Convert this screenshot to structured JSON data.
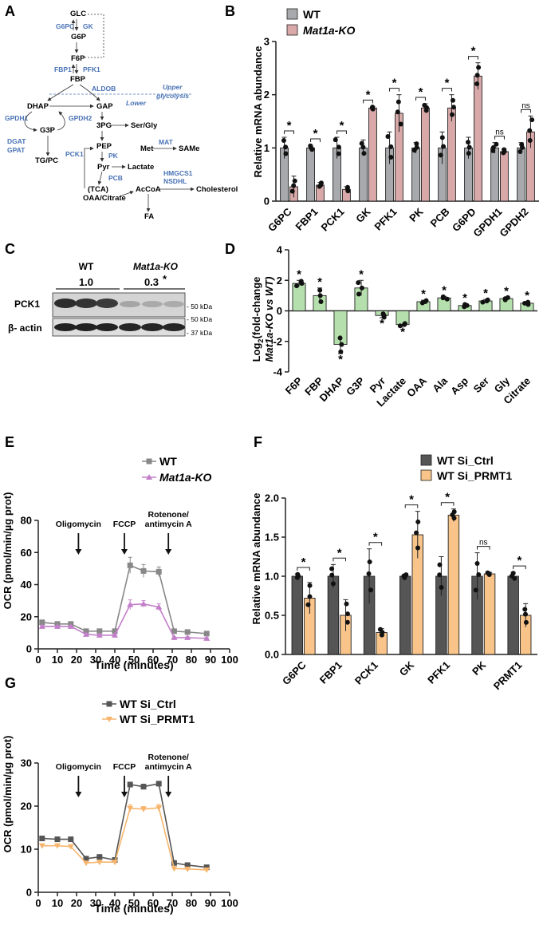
{
  "panels": {
    "A": "A",
    "B": "B",
    "C": "C",
    "D": "D",
    "E": "E",
    "F": "F",
    "G": "G"
  },
  "colors": {
    "wt": "#a7a9ac",
    "ko": "#d9a9a9",
    "green": "#b5e0ad",
    "ko_line": "#c27ec9",
    "si_ctrl": "#555555",
    "si_prmt1": "#f8c48a",
    "si_prmt1_line": "#f7b56d",
    "pathway_blue": "#4a73b5"
  },
  "pathway": {
    "metabolites": [
      "GLC",
      "G6P",
      "F6P",
      "FBP",
      "DHAP",
      "GAP",
      "3PG",
      "Ser/Gly",
      "G3P",
      "PEP",
      "Met",
      "SAMe",
      "TG/PC",
      "Pyr",
      "Lactate",
      "(TCA)",
      "OAA/Citrate",
      "AcCoA",
      "Cholesterol",
      "FA"
    ],
    "enzymes": [
      "G6PC",
      "GK",
      "FBP1",
      "PFK1",
      "ALDOB",
      "GPDH1",
      "GPDH2",
      "DGAT",
      "GPAT",
      "PCK1",
      "PK",
      "MAT",
      "PCB",
      "HMGCS1",
      "NSDHL"
    ],
    "upper_label": "Upper",
    "glycolysis_label": "glycolysis",
    "lower_label": "Lower"
  },
  "blot": {
    "groups": [
      "WT",
      "Mat1a-KO"
    ],
    "quant": [
      "1.0",
      "0.3"
    ],
    "quant_star": "*",
    "rows": [
      "PCK1",
      "β- actin"
    ],
    "markers": [
      "- 50 kDa",
      "- 50 kDa",
      "- 37 kDa"
    ]
  },
  "chart_data": [
    {
      "panel": "B",
      "type": "bar",
      "ylabel": "Relative mRNA abundance",
      "ylim": [
        0,
        3
      ],
      "yticks": [
        0,
        1,
        2,
        3
      ],
      "categories": [
        "G6PC",
        "FBP1",
        "PCK1",
        "GK",
        "PFK1",
        "PK",
        "PCB",
        "G6PD",
        "GPDH1",
        "GPDH2"
      ],
      "series": [
        {
          "name": "WT",
          "values": [
            1.0,
            1.0,
            1.0,
            1.0,
            1.0,
            1.0,
            1.0,
            1.0,
            1.0,
            1.0
          ],
          "errors": [
            0.2,
            0.05,
            0.2,
            0.15,
            0.3,
            0.1,
            0.3,
            0.2,
            0.1,
            0.1
          ]
        },
        {
          "name": "Mat1a-KO",
          "values": [
            0.27,
            0.3,
            0.22,
            1.75,
            1.65,
            1.75,
            1.75,
            2.35,
            0.93,
            1.3
          ],
          "errors": [
            0.2,
            0.05,
            0.05,
            0.03,
            0.35,
            0.08,
            0.25,
            0.25,
            0.05,
            0.3
          ]
        }
      ],
      "significance": [
        "*",
        "*",
        "*",
        "*",
        "*",
        "*",
        "*",
        "*",
        "ns",
        "ns"
      ]
    },
    {
      "panel": "D",
      "type": "bar",
      "ylabel_line1": "Log",
      "ylabel_sub": "2",
      "ylabel_line1_rest": "(fold-change",
      "ylabel_line2": "Mat1a-KO vs WT)",
      "ylim": [
        -4,
        4
      ],
      "yticks": [
        -4,
        -2,
        0,
        2,
        4
      ],
      "categories": [
        "F6P",
        "FBP",
        "DHAP",
        "G3P",
        "Pyr",
        "Lactate",
        "OAA",
        "Ala",
        "Asp",
        "Ser",
        "Gly",
        "Citrate"
      ],
      "values": [
        1.8,
        1.0,
        -2.2,
        1.5,
        -0.3,
        -0.9,
        0.6,
        0.85,
        0.35,
        0.65,
        0.8,
        0.5
      ],
      "errors": [
        0.2,
        0.5,
        0.6,
        0.5,
        0.15,
        0.1,
        0.1,
        0.1,
        0.1,
        0.1,
        0.1,
        0.1
      ],
      "significance": [
        "*",
        "*",
        "*",
        "*",
        "*",
        "*",
        "*",
        "*",
        "*",
        "*",
        "*",
        "*"
      ]
    },
    {
      "panel": "E",
      "type": "line",
      "xlabel": "Time (minutes)",
      "ylabel": "OCR (pmol/min/µg prot)",
      "xlim": [
        0,
        100
      ],
      "ylim": [
        0,
        80
      ],
      "xticks": [
        0,
        10,
        20,
        30,
        40,
        50,
        60,
        70,
        80,
        90,
        100
      ],
      "yticks": [
        0,
        20,
        40,
        60,
        80
      ],
      "x": [
        2,
        10,
        17,
        25,
        32,
        40,
        48,
        55,
        63,
        71,
        78,
        88
      ],
      "series": [
        {
          "name": "WT",
          "values": [
            16.5,
            15.5,
            15.5,
            11,
            11,
            11,
            52,
            48.5,
            48,
            11,
            10.5,
            9.5
          ],
          "errors": [
            0.8,
            0.8,
            0.8,
            0.8,
            0.8,
            0.8,
            5,
            4,
            3,
            0.8,
            0.8,
            0.8
          ]
        },
        {
          "name": "Mat1a-KO",
          "values": [
            14,
            14,
            14,
            9,
            8.5,
            8.5,
            27.5,
            28,
            26,
            7,
            7,
            6.5
          ],
          "errors": [
            0.5,
            0.5,
            0.5,
            0.5,
            0.5,
            0.5,
            3,
            2,
            2,
            0.5,
            0.5,
            0.5
          ]
        }
      ],
      "injections": [
        {
          "label": "Oligomycin",
          "x": 21
        },
        {
          "label": "FCCP",
          "x": 45
        },
        {
          "label_line1": "Rotenone/",
          "label_line2": "antimycin A",
          "x": 68
        }
      ]
    },
    {
      "panel": "F",
      "type": "bar",
      "ylabel": "Relative mRNA abundance",
      "ylim": [
        0,
        2.0
      ],
      "yticks": [
        0.0,
        0.5,
        1.0,
        1.5,
        2.0
      ],
      "categories": [
        "G6PC",
        "FBP1",
        "PCK1",
        "GK",
        "PFK1",
        "PK",
        "PRMT1"
      ],
      "series": [
        {
          "name": "WT Si_Ctrl",
          "values": [
            1.0,
            1.0,
            1.0,
            1.0,
            1.0,
            1.0,
            1.0
          ],
          "errors": [
            0.03,
            0.15,
            0.35,
            0.03,
            0.25,
            0.3,
            0.05
          ]
        },
        {
          "name": "WT Si_PRMT1",
          "values": [
            0.72,
            0.5,
            0.28,
            1.53,
            1.78,
            1.03,
            0.5
          ],
          "errors": [
            0.2,
            0.2,
            0.05,
            0.3,
            0.08,
            0.02,
            0.15
          ]
        }
      ],
      "significance": [
        "*",
        "*",
        "*",
        "*",
        "*",
        "ns",
        "*"
      ]
    },
    {
      "panel": "G",
      "type": "line",
      "xlabel": "Time (minutes)",
      "ylabel": "OCR (pmol/min/µg prot)",
      "xlim": [
        0,
        100
      ],
      "ylim": [
        0,
        30
      ],
      "xticks": [
        0,
        10,
        20,
        30,
        40,
        50,
        60,
        70,
        80,
        90,
        100
      ],
      "yticks": [
        0,
        10,
        20,
        30
      ],
      "x": [
        2,
        10,
        17,
        25,
        32,
        40,
        48,
        55,
        63,
        71,
        78,
        88
      ],
      "series": [
        {
          "name": "WT Si_Ctrl",
          "values": [
            12.5,
            12.3,
            12.3,
            7.8,
            8.2,
            7.5,
            25,
            24.5,
            25.2,
            6.8,
            6.3,
            5.8
          ],
          "errors": [
            0.4,
            0.4,
            0.4,
            0.4,
            0.4,
            0.3,
            0.5,
            0.6,
            0.5,
            0.3,
            0.3,
            0.3
          ]
        },
        {
          "name": "WT Si_PRMT1",
          "values": [
            10.8,
            10.8,
            10.6,
            6.8,
            7,
            7,
            19.5,
            19.3,
            19.6,
            5.5,
            5.4,
            5.2
          ],
          "errors": [
            0.4,
            0.4,
            0.4,
            0.3,
            0.3,
            0.3,
            0.8,
            0.6,
            0.8,
            0.3,
            0.3,
            0.3
          ]
        }
      ],
      "injections": [
        {
          "label": "Oligomycin",
          "x": 21
        },
        {
          "label": "FCCP",
          "x": 45
        },
        {
          "label_line1": "Rotenone/",
          "label_line2": "antimycin A",
          "x": 68
        }
      ]
    }
  ]
}
